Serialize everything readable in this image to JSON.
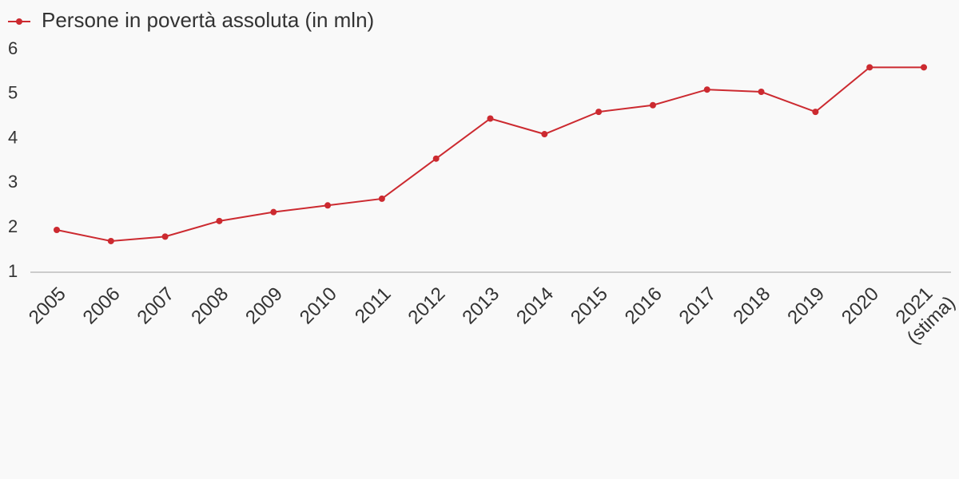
{
  "chart_data": {
    "type": "line",
    "categories": [
      "2005",
      "2006",
      "2007",
      "2008",
      "2009",
      "2010",
      "2011",
      "2012",
      "2013",
      "2014",
      "2015",
      "2016",
      "2017",
      "2018",
      "2019",
      "2020",
      "2021 (stima)"
    ],
    "series": [
      {
        "name": "Persone in povertà assoluta (in mln)",
        "color": "#cc2a30",
        "values": [
          1.95,
          1.7,
          1.8,
          2.15,
          2.35,
          2.5,
          2.65,
          3.55,
          4.45,
          4.1,
          4.6,
          4.75,
          5.1,
          5.05,
          4.6,
          5.6,
          5.6
        ]
      }
    ],
    "ylim": [
      1,
      6
    ],
    "yticks": [
      1,
      2,
      3,
      4,
      5,
      6
    ],
    "grid": false,
    "legend": "top-left"
  }
}
